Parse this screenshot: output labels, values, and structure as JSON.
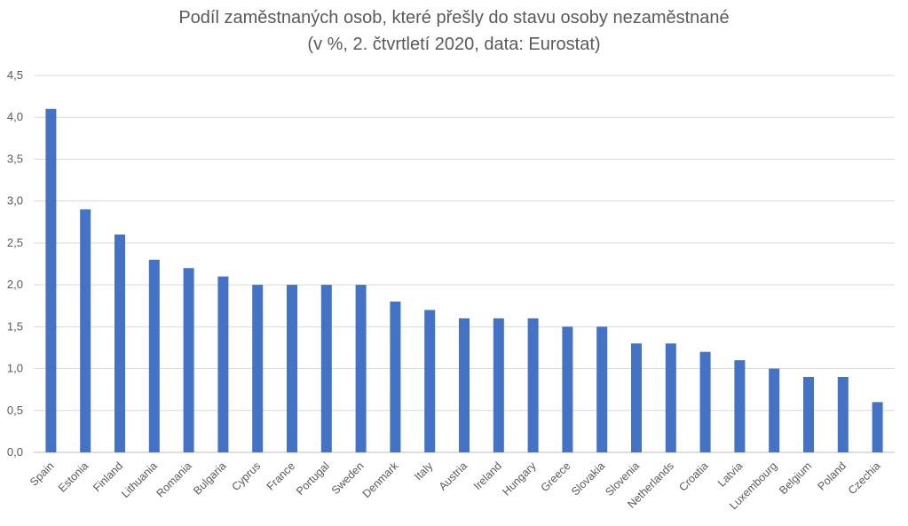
{
  "chart_data": {
    "type": "bar",
    "title": "Podíl zaměstnaných osob, které přešly do stavu osoby nezaměstnané",
    "subtitle": "(v %, 2. čtvrtletí 2020, data: Eurostat)",
    "xlabel": "",
    "ylabel": "",
    "categories": [
      "Spain",
      "Estonia",
      "Finland",
      "Lithuania",
      "Romania",
      "Bulgaria",
      "Cyprus",
      "France",
      "Portugal",
      "Sweden",
      "Denmark",
      "Italy",
      "Austria",
      "Ireland",
      "Hungary",
      "Greece",
      "Slovakia",
      "Slovenia",
      "Netherlands",
      "Croatia",
      "Latvia",
      "Luxembourg",
      "Belgium",
      "Poland",
      "Czechia"
    ],
    "values": [
      4.1,
      2.9,
      2.6,
      2.3,
      2.2,
      2.1,
      2.0,
      2.0,
      2.0,
      2.0,
      1.8,
      1.7,
      1.6,
      1.6,
      1.6,
      1.5,
      1.5,
      1.3,
      1.3,
      1.2,
      1.1,
      1.0,
      0.9,
      0.9,
      0.6
    ],
    "ylim": [
      0,
      4.5
    ],
    "yticks": [
      0,
      0.5,
      1.0,
      1.5,
      2.0,
      2.5,
      3.0,
      3.5,
      4.0,
      4.5
    ],
    "ytick_labels": [
      "0,0",
      "0,5",
      "1,0",
      "1,5",
      "2,0",
      "2,5",
      "3,0",
      "3,5",
      "4,0",
      "4,5"
    ],
    "grid": true,
    "legend": "none",
    "colors": {
      "bar": "#4472C4",
      "grid": "#D9D9D9",
      "text": "#595959"
    }
  }
}
